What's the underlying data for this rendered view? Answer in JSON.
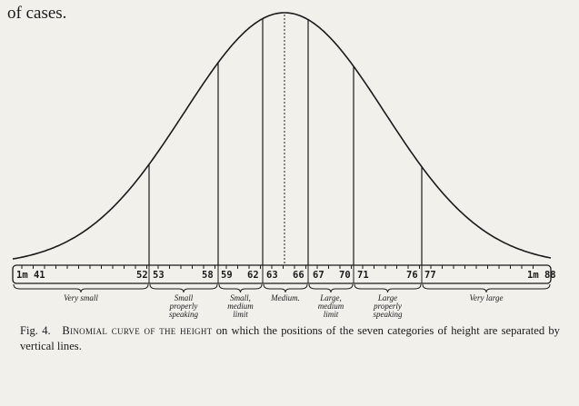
{
  "previous_text": "of cases.",
  "ruler": {
    "start_label": "1m 41",
    "end_label": "1m 88",
    "ticks": [
      {
        "label": "52"
      },
      {
        "label": "53"
      },
      {
        "label": "58"
      },
      {
        "label": "59"
      },
      {
        "label": "62"
      },
      {
        "label": "63"
      },
      {
        "label": "66"
      },
      {
        "label": "67"
      },
      {
        "label": "70"
      },
      {
        "label": "71"
      },
      {
        "label": "76"
      },
      {
        "label": "77"
      }
    ]
  },
  "categories": [
    {
      "lines": [
        "Very small"
      ]
    },
    {
      "lines": [
        "Small",
        "properly",
        "speaking"
      ]
    },
    {
      "lines": [
        "Small,",
        "medium",
        "limit"
      ]
    },
    {
      "lines": [
        "Medium."
      ]
    },
    {
      "lines": [
        "Large,",
        "medium",
        "limit"
      ]
    },
    {
      "lines": [
        "Large",
        "properly",
        "speaking"
      ]
    },
    {
      "lines": [
        "Very large"
      ]
    }
  ],
  "caption": {
    "fig_number": "Fig. 4.",
    "title_smallcaps": "Binomial curve of the height",
    "rest": " on which the positions of the seven categories of height are separated by vertical lines."
  }
}
